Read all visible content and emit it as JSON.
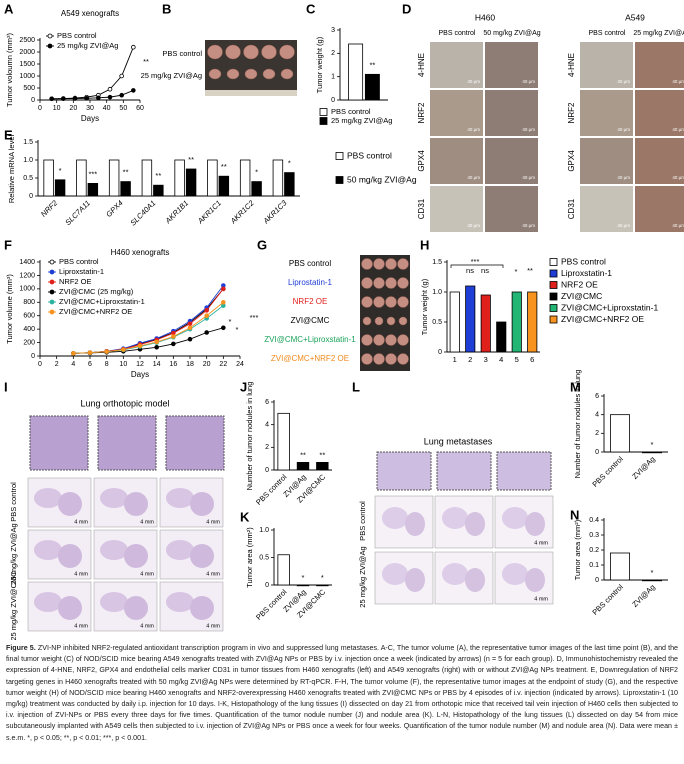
{
  "chart_data": [
    {
      "panel": "A",
      "type": "line",
      "title": "A549 xenografts",
      "xlabel": "Days",
      "ylabel": "Tumor voloumn (mm³)",
      "xlim": [
        0,
        60
      ],
      "xticks": [
        0,
        10,
        20,
        30,
        40,
        50,
        60
      ],
      "ylim": [
        0,
        2500
      ],
      "yticks": [
        0,
        500,
        1000,
        1500,
        2000,
        2500
      ],
      "series": [
        {
          "name": "PBS control",
          "color": "#000000",
          "marker": "open",
          "x": [
            7,
            14,
            21,
            28,
            35,
            42,
            49,
            56
          ],
          "values": [
            50,
            60,
            80,
            120,
            200,
            450,
            1000,
            2200
          ]
        },
        {
          "name": "25 mg/kg ZVI@Ag",
          "color": "#000000",
          "marker": "filled",
          "x": [
            7,
            14,
            21,
            28,
            35,
            42,
            49,
            56
          ],
          "values": [
            50,
            55,
            60,
            70,
            90,
            120,
            200,
            400
          ]
        }
      ],
      "annotations": [
        "**"
      ]
    },
    {
      "panel": "C",
      "type": "bar",
      "ylabel": "Tumor weight (g)",
      "ylim": [
        0,
        3
      ],
      "yticks": [
        0,
        1,
        2,
        3
      ],
      "categories": [
        null
      ],
      "series": [
        {
          "name": "PBS control",
          "color": "#ffffff",
          "values": [
            2.4
          ]
        },
        {
          "name": "25 mg/kg ZVI@Ag",
          "color": "#000000",
          "values": [
            1.1
          ]
        }
      ],
      "annotations": [
        "**"
      ]
    },
    {
      "panel": "E",
      "type": "bar",
      "ylabel": "Relative mRNA level",
      "ylim": [
        0,
        1.5
      ],
      "yticks": [
        0,
        0.5,
        {
          "value": 1,
          "label": "1.0"
        },
        1.5
      ],
      "categories": [
        "NRF2",
        "SLC7A11",
        "GPX4",
        "SLC40A1",
        "AKR1B1",
        "AKR1C1",
        "AKR1C2",
        "AKR1C3"
      ],
      "series": [
        {
          "name": "PBS control",
          "color": "#ffffff",
          "values": [
            1,
            1,
            1,
            1,
            1,
            1,
            1,
            1
          ]
        },
        {
          "name": "50 mg/kg ZVI@Ag",
          "color": "#000000",
          "values": [
            0.45,
            0.35,
            0.4,
            0.3,
            0.75,
            0.55,
            0.4,
            0.65
          ]
        }
      ],
      "annotations": [
        "*",
        "***",
        "**",
        "**",
        "**",
        "**",
        "*",
        "*"
      ]
    },
    {
      "panel": "F",
      "type": "line",
      "title": "H460 xenografts",
      "xlabel": "Days",
      "ylabel": "Tumor volume (mm³)",
      "xlim": [
        0,
        24
      ],
      "xticks": [
        0,
        2,
        4,
        6,
        8,
        10,
        12,
        14,
        16,
        18,
        20,
        22,
        24
      ],
      "ylim": [
        0,
        1400
      ],
      "yticks": [
        0,
        200,
        400,
        600,
        800,
        1000,
        1200,
        1400
      ],
      "series": [
        {
          "name": "PBS control",
          "color": "#000000",
          "marker": "open",
          "x": [
            4,
            6,
            8,
            10,
            12,
            14,
            16,
            18,
            20,
            22
          ],
          "values": [
            40,
            50,
            70,
            100,
            180,
            250,
            350,
            500,
            700,
            1000
          ]
        },
        {
          "name": "Liproxstatin-1",
          "color": "#1f3ed6",
          "marker": "filled",
          "x": [
            4,
            6,
            8,
            10,
            12,
            14,
            16,
            18,
            20,
            22
          ],
          "values": [
            40,
            50,
            70,
            110,
            190,
            260,
            370,
            520,
            720,
            1050
          ]
        },
        {
          "name": "NRF2 OE",
          "color": "#e0201b",
          "marker": "filled",
          "x": [
            4,
            6,
            8,
            10,
            12,
            14,
            16,
            18,
            20,
            22
          ],
          "values": [
            40,
            50,
            70,
            100,
            170,
            240,
            340,
            480,
            680,
            1000
          ]
        },
        {
          "name": "ZVI@CMC (25 mg/kg)",
          "color": "#000000",
          "marker": "filled",
          "x": [
            4,
            6,
            8,
            10,
            12,
            14,
            16,
            18,
            20,
            22
          ],
          "values": [
            40,
            45,
            55,
            70,
            100,
            130,
            180,
            250,
            350,
            420
          ]
        },
        {
          "name": "ZVI@CMC+Liproxstatin-1",
          "color": "#2bb3a0",
          "marker": "filled",
          "x": [
            4,
            6,
            8,
            10,
            12,
            14,
            16,
            18,
            20,
            22
          ],
          "values": [
            40,
            50,
            65,
            90,
            140,
            200,
            280,
            400,
            560,
            750
          ]
        },
        {
          "name": "ZVI@CMC+NRF2 OE",
          "color": "#f7931e",
          "marker": "filled",
          "x": [
            4,
            6,
            8,
            10,
            12,
            14,
            16,
            18,
            20,
            22
          ],
          "values": [
            40,
            50,
            65,
            95,
            150,
            210,
            290,
            420,
            600,
            800
          ]
        }
      ],
      "annotations": [
        "***",
        "*",
        "*"
      ]
    },
    {
      "panel": "H",
      "type": "bar",
      "ylabel": "Tumor weight (g)",
      "ylim": [
        0,
        1.5
      ],
      "yticks": [
        0,
        0.5,
        {
          "value": 1,
          "label": "1.0"
        },
        1.5
      ],
      "categories": [
        "1",
        "2",
        "3",
        "4",
        "5",
        "6"
      ],
      "values": [
        1.0,
        1.1,
        0.95,
        0.5,
        1.0,
        1.0
      ],
      "colors": [
        "#ffffff",
        "#1f3ed6",
        "#e0201b",
        "#000000",
        "#22b573",
        "#f7931e"
      ],
      "legend": [
        "PBS control",
        "Liproxstatin-1",
        "NRF2 OE",
        "ZVI@CMC",
        "ZVI@CMC+Liproxstatin-1",
        "ZVI@CMC+NRF2 OE"
      ],
      "annotations": [
        "***",
        "ns",
        "ns",
        "*",
        "**"
      ]
    },
    {
      "panel": "J",
      "type": "bar",
      "ylabel": "Number of tumor nodules in lung",
      "ylim": [
        0,
        6
      ],
      "yticks": [
        0,
        2,
        4,
        6
      ],
      "categories": [
        "PBS control",
        "ZVI@Ag",
        "ZVI@CMC"
      ],
      "values": [
        5,
        0.67,
        0.67
      ],
      "colors": [
        "#ffffff",
        "#000000",
        "#000000"
      ],
      "annotations": [
        "**",
        "**"
      ]
    },
    {
      "panel": "K",
      "type": "bar",
      "ylabel": "Tumor area (mm²)",
      "ylim": [
        0,
        1
      ],
      "yticks": [
        0,
        0.5,
        {
          "value": 1,
          "label": "1.0"
        }
      ],
      "categories": [
        "PBS control",
        "ZVI@Ag",
        "ZVI@CMC"
      ],
      "values": [
        0.55,
        0,
        0
      ],
      "colors": [
        "#ffffff",
        "#000000",
        "#000000"
      ],
      "annotations": [
        "*",
        "*"
      ]
    },
    {
      "panel": "M",
      "type": "bar",
      "ylabel": "Number of tumor nodules in lung",
      "ylim": [
        0,
        6
      ],
      "yticks": [
        0,
        2,
        4,
        6
      ],
      "categories": [
        "PBS control",
        "ZVI@Ag"
      ],
      "values": [
        4,
        0
      ],
      "colors": [
        "#ffffff",
        "#000000"
      ],
      "annotations": [
        "*"
      ]
    },
    {
      "panel": "N",
      "type": "bar",
      "ylabel": "Tumor area (mm²)",
      "ylim": [
        0,
        0.4
      ],
      "yticks": [
        0,
        0.1,
        0.2,
        0.3,
        0.4
      ],
      "categories": [
        "PBS control",
        "ZVI@Ag"
      ],
      "values": [
        0.18,
        0
      ],
      "colors": [
        "#ffffff",
        "#000000"
      ],
      "annotations": [
        "*"
      ]
    }
  ],
  "images": {
    "B": {
      "label": "B",
      "rows": [
        "PBS control",
        "25 mg/kg ZVI@Ag"
      ]
    },
    "D": {
      "label": "D",
      "groups": [
        {
          "title": "H460",
          "columns": [
            "PBS control",
            "50 mg/kg ZVI@Ag"
          ]
        },
        {
          "title": "A549",
          "columns": [
            "PBS control",
            "25 mg/kg ZVI@Ag"
          ]
        }
      ],
      "rows": [
        "4-HNE",
        "NRF2",
        "GPX4",
        "CD31"
      ],
      "scale": "40 μm"
    },
    "G": {
      "label": "G",
      "rows": [
        {
          "text": "PBS control",
          "color": "#000000"
        },
        {
          "text": "Liprostatin-1",
          "color": "#1f3ed6"
        },
        {
          "text": "NRF2 OE",
          "color": "#e0201b"
        },
        {
          "text": "ZVI@CMC",
          "color": "#000000"
        },
        {
          "text": "ZVI@CMC+Liproxstatin-1",
          "color": "#1aa35a"
        },
        {
          "text": "ZVI@CMC+NRF2 OE",
          "color": "#f08a1c"
        }
      ]
    },
    "I": {
      "label": "I",
      "title": "Lung orthotopic model",
      "rows": [
        "PBS control",
        "25 mg/kg ZVI@Ag",
        "25 mg/kg ZVI@CMC"
      ],
      "scale": "4 mm"
    },
    "L": {
      "label": "L",
      "title": "Lung metastases",
      "rows": [
        "PBS control",
        "25 mg/kg ZVI@Ag"
      ],
      "scale": "4 mm"
    }
  },
  "caption": {
    "label": "Figure 5.",
    "text": "ZVI-NP inhibited NRF2-regulated antioxidant transcription program in vivo and suppressed lung metastases. A-C, The tumor volume (A), the representative tumor images of the last time point (B), and the final tumor weight (C) of NOD/SCID mice bearing A549 xenografts treated with ZVI@Ag NPs or PBS by i.v. injection once a week (indicated by arrows) (n = 5 for each group). D, Immunohistochemistry revealed the expression of 4-HNE, NRF2, GPX4 and endothelial cells marker CD31 in tumor tissues from H460 xenografts (left) and A549 xenografts (right) with or without ZVI@Ag NPs treatment. E, Downregulation of NRF2 targeting genes in H460 xenografts treated with 50 mg/kg ZVI@Ag NPs were determined by RT-qPCR. F-H, The tumor volume (F), the representative tumor images at the endpoint of study (G), and the respective tumor weight (H) of NOD/SCID mice bearing H460 xenografts and NRF2-overexpressing H460 xenografts treated with ZVI@CMC NPs or PBS by 4 episodes of i.v. injection (indicated by arrows). Liproxstatin-1 (10 mg/kg) treatment was conducted by daily i.p. injection for 10 days. I-K, Histopathology of the lung tissues (I) dissected on day 21 from orthotopic mice that received tail vein injection of H460 cells then subjected to i.v. injection of ZVI-NPs or PBS every three days for five times. Quantification of the tumor nodule number (J) and nodule area (K). L-N, Histopathology of the lung tissues (L) dissected on day 54 from mice subcutaneously implanted with A549 cells then subjected to i.v. injection of ZVI@Ag NPs or PBS once a week for four weeks. Quantification of the tumor nodule number (M) and nodule area (N). Data were mean ± s.e.m. *, p < 0.05; **, p < 0.01; ***, p < 0.001."
  }
}
